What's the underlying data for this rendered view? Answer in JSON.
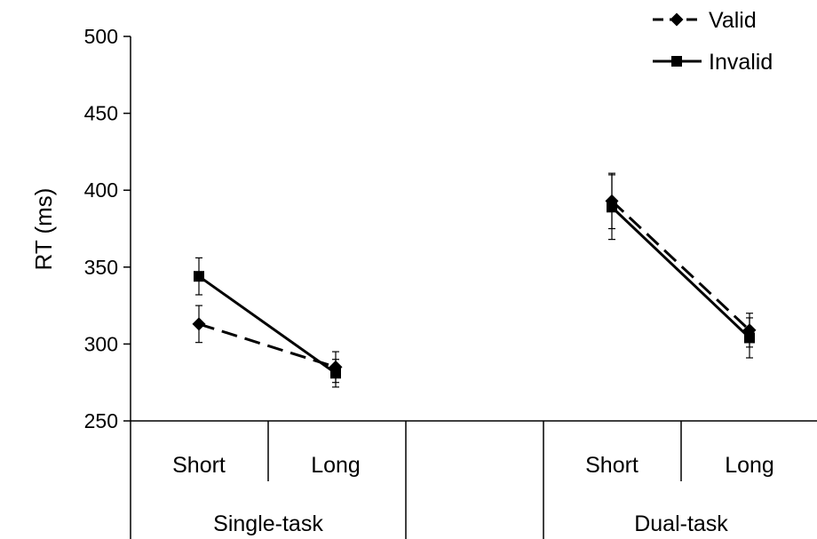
{
  "chart_data": {
    "type": "line",
    "ylabel": "RT (ms)",
    "ylim": [
      250,
      500
    ],
    "yticks": [
      "250",
      "300",
      "350",
      "400",
      "450",
      "500"
    ],
    "x_levels": [
      "Short",
      "Long"
    ],
    "groups": [
      "Single-task",
      "Dual-task"
    ],
    "legend_position": "top-right",
    "grid": false,
    "series": [
      {
        "name": "Valid",
        "marker": "diamond",
        "line_style": "dashed",
        "color": "#000000",
        "points": [
          {
            "group": "Single-task",
            "x": "Short",
            "y": 313,
            "error": 12
          },
          {
            "group": "Single-task",
            "x": "Long",
            "y": 285,
            "error": 10
          },
          {
            "group": "Dual-task",
            "x": "Short",
            "y": 393,
            "error": 18
          },
          {
            "group": "Dual-task",
            "x": "Long",
            "y": 309,
            "error": 11
          }
        ]
      },
      {
        "name": "Invalid",
        "marker": "square",
        "line_style": "solid",
        "color": "#000000",
        "points": [
          {
            "group": "Single-task",
            "x": "Short",
            "y": 344,
            "error": 12
          },
          {
            "group": "Single-task",
            "x": "Long",
            "y": 281,
            "error": 9
          },
          {
            "group": "Dual-task",
            "x": "Short",
            "y": 389,
            "error": 21
          },
          {
            "group": "Dual-task",
            "x": "Long",
            "y": 304,
            "error": 13
          }
        ]
      }
    ]
  }
}
